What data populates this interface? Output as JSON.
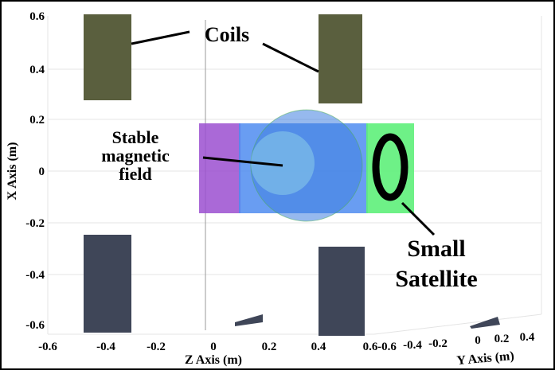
{
  "axes": {
    "x": {
      "label": "X Axis (m)",
      "ticks": [
        "0.6",
        "0.4",
        "0.2",
        "0",
        "-0.2",
        "-0.4",
        "-0.6"
      ]
    },
    "z": {
      "label": "Z Axis (m)",
      "ticks": [
        "-0.6",
        "-0.4",
        "-0.2",
        "0",
        "0.2",
        "0.4",
        "0.6"
      ]
    },
    "y": {
      "label": "Y Axis (m)",
      "ticks": [
        "-0.6",
        "-0.4",
        "-0.2",
        "0",
        "0.2",
        "0.4"
      ]
    }
  },
  "annotations": {
    "coils": "Coils",
    "field": [
      "Stable",
      "magnetic",
      "field"
    ],
    "satellite": [
      "Small",
      "Satellite"
    ]
  }
}
